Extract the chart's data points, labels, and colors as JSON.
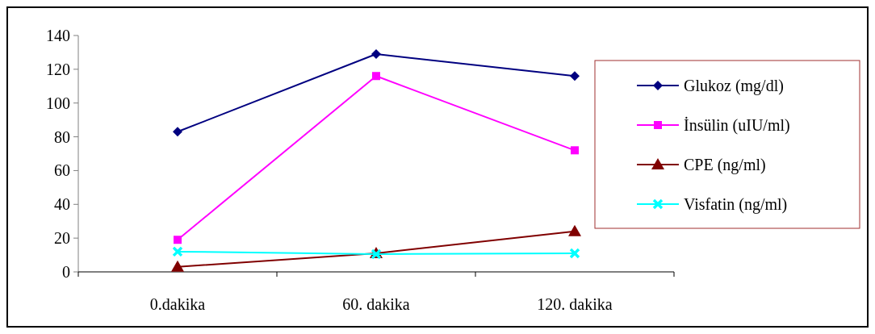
{
  "chart_data": {
    "type": "line",
    "categories": [
      "0.dakika",
      "60. dakika",
      "120. dakika"
    ],
    "series": [
      {
        "name": "Glukoz (mg/dl)",
        "color": "#000080",
        "marker": "diamond",
        "values": [
          83,
          129,
          116
        ]
      },
      {
        "name": "İnsülin (uIU/ml)",
        "color": "#ff00ff",
        "marker": "square",
        "values": [
          19,
          116,
          72
        ]
      },
      {
        "name": "CPE (ng/ml)",
        "color": "#800000",
        "marker": "triangle",
        "values": [
          3,
          11,
          24
        ]
      },
      {
        "name": "Visfatin (ng/ml)",
        "color": "#00ffff",
        "marker": "cross",
        "values": [
          12,
          10.5,
          11
        ]
      }
    ],
    "ylim": [
      0,
      140
    ],
    "yticks": [
      0,
      20,
      40,
      60,
      80,
      100,
      120,
      140
    ],
    "grid": false,
    "legend": "right"
  }
}
